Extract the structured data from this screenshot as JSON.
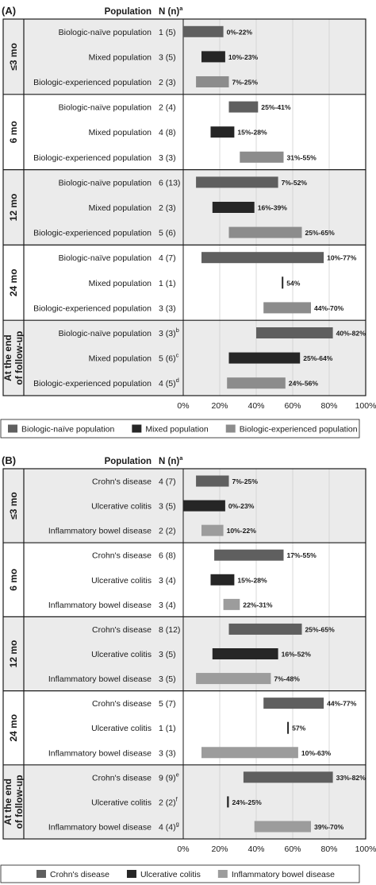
{
  "colors": {
    "naive": "#5f5f5f",
    "mixed": "#262626",
    "experienced": "#8c8c8c",
    "crohns": "#5f5f5f",
    "uc": "#262626",
    "ibd": "#9c9c9c",
    "shade": "#ebebeb"
  },
  "chart_data": [
    {
      "type": "bar",
      "panel": "(A)",
      "col_population": "Population",
      "col_n": "N (n)",
      "col_n_sup": "a",
      "xlim": [
        0,
        100
      ],
      "x_ticks": [
        "0%",
        "20%",
        "40%",
        "60%",
        "80%",
        "100%"
      ],
      "legend": [
        {
          "label": "Biologic-naïve population",
          "color_key": "naive"
        },
        {
          "label": "Mixed population",
          "color_key": "mixed"
        },
        {
          "label": "Biologic-experienced population",
          "color_key": "experienced"
        }
      ],
      "groups": [
        {
          "label": "≤3 mo",
          "shaded": true,
          "rows": [
            {
              "label": "Biologic-naïve population",
              "n": "1 (5)",
              "sup": "",
              "low": 0,
              "high": 22,
              "range_label": "0%-22%",
              "color_key": "naive"
            },
            {
              "label": "Mixed population",
              "n": "3 (5)",
              "sup": "",
              "low": 10,
              "high": 23,
              "range_label": "10%-23%",
              "color_key": "mixed"
            },
            {
              "label": "Biologic-experienced population",
              "n": "2 (3)",
              "sup": "",
              "low": 7,
              "high": 25,
              "range_label": "7%-25%",
              "color_key": "experienced"
            }
          ]
        },
        {
          "label": "6 mo",
          "shaded": false,
          "rows": [
            {
              "label": "Biologic-naïve population",
              "n": "2 (4)",
              "sup": "",
              "low": 25,
              "high": 41,
              "range_label": "25%-41%",
              "color_key": "naive"
            },
            {
              "label": "Mixed population",
              "n": "4 (8)",
              "sup": "",
              "low": 15,
              "high": 28,
              "range_label": "15%-28%",
              "color_key": "mixed"
            },
            {
              "label": "Biologic-experienced population",
              "n": "3 (3)",
              "sup": "",
              "low": 31,
              "high": 55,
              "range_label": "31%-55%",
              "color_key": "experienced"
            }
          ]
        },
        {
          "label": "12 mo",
          "shaded": true,
          "rows": [
            {
              "label": "Biologic-naïve population",
              "n": "6 (13)",
              "sup": "",
              "low": 7,
              "high": 52,
              "range_label": "7%-52%",
              "color_key": "naive"
            },
            {
              "label": "Mixed population",
              "n": "2 (3)",
              "sup": "",
              "low": 16,
              "high": 39,
              "range_label": "16%-39%",
              "color_key": "mixed"
            },
            {
              "label": "Biologic-experienced population",
              "n": "5 (6)",
              "sup": "",
              "low": 25,
              "high": 65,
              "range_label": "25%-65%",
              "color_key": "experienced"
            }
          ]
        },
        {
          "label": "24 mo",
          "shaded": false,
          "rows": [
            {
              "label": "Biologic-naïve population",
              "n": "4 (7)",
              "sup": "",
              "low": 10,
              "high": 77,
              "range_label": "10%-77%",
              "color_key": "naive"
            },
            {
              "label": "Mixed population",
              "n": "1 (1)",
              "sup": "",
              "low": 54,
              "high": 54,
              "range_label": "54%",
              "color_key": "mixed"
            },
            {
              "label": "Biologic-experienced population",
              "n": "3 (3)",
              "sup": "",
              "low": 44,
              "high": 70,
              "range_label": "44%-70%",
              "color_key": "experienced"
            }
          ]
        },
        {
          "label": "At the end of follow-up",
          "shaded": true,
          "rows": [
            {
              "label": "Biologic-naïve population",
              "n": "3 (3)",
              "sup": "b",
              "low": 40,
              "high": 82,
              "range_label": "40%-82%",
              "color_key": "naive"
            },
            {
              "label": "Mixed population",
              "n": "5 (6)",
              "sup": "c",
              "low": 25,
              "high": 64,
              "range_label": "25%-64%",
              "color_key": "mixed"
            },
            {
              "label": "Biologic-experienced population",
              "n": "4 (5)",
              "sup": "d",
              "low": 24,
              "high": 56,
              "range_label": "24%-56%",
              "color_key": "experienced"
            }
          ]
        }
      ]
    },
    {
      "type": "bar",
      "panel": "(B)",
      "col_population": "Population",
      "col_n": "N (n)",
      "col_n_sup": "a",
      "xlim": [
        0,
        100
      ],
      "x_ticks": [
        "0%",
        "20%",
        "40%",
        "60%",
        "80%",
        "100%"
      ],
      "legend": [
        {
          "label": "Crohn's disease",
          "color_key": "crohns"
        },
        {
          "label": "Ulcerative colitis",
          "color_key": "uc"
        },
        {
          "label": "Inflammatory bowel disease",
          "color_key": "ibd"
        }
      ],
      "groups": [
        {
          "label": "≤3 mo",
          "shaded": true,
          "rows": [
            {
              "label": "Crohn's disease",
              "n": "4 (7)",
              "sup": "",
              "low": 7,
              "high": 25,
              "range_label": "7%-25%",
              "color_key": "crohns"
            },
            {
              "label": "Ulcerative colitis",
              "n": "3 (5)",
              "sup": "",
              "low": 0,
              "high": 23,
              "range_label": "0%-23%",
              "color_key": "uc"
            },
            {
              "label": "Inflammatory bowel disease",
              "n": "2 (2)",
              "sup": "",
              "low": 10,
              "high": 22,
              "range_label": "10%-22%",
              "color_key": "ibd"
            }
          ]
        },
        {
          "label": "6 mo",
          "shaded": false,
          "rows": [
            {
              "label": "Crohn's disease",
              "n": "6 (8)",
              "sup": "",
              "low": 17,
              "high": 55,
              "range_label": "17%-55%",
              "color_key": "crohns"
            },
            {
              "label": "Ulcerative colitis",
              "n": "3 (4)",
              "sup": "",
              "low": 15,
              "high": 28,
              "range_label": "15%-28%",
              "color_key": "uc"
            },
            {
              "label": "Inflammatory bowel disease",
              "n": "3 (4)",
              "sup": "",
              "low": 22,
              "high": 31,
              "range_label": "22%-31%",
              "color_key": "ibd"
            }
          ]
        },
        {
          "label": "12 mo",
          "shaded": true,
          "rows": [
            {
              "label": "Crohn's disease",
              "n": "8 (12)",
              "sup": "",
              "low": 25,
              "high": 65,
              "range_label": "25%-65%",
              "color_key": "crohns"
            },
            {
              "label": "Ulcerative colitis",
              "n": "3 (5)",
              "sup": "",
              "low": 16,
              "high": 52,
              "range_label": "16%-52%",
              "color_key": "uc"
            },
            {
              "label": "Inflammatory bowel disease",
              "n": "3 (5)",
              "sup": "",
              "low": 7,
              "high": 48,
              "range_label": "7%-48%",
              "color_key": "ibd"
            }
          ]
        },
        {
          "label": "24 mo",
          "shaded": false,
          "rows": [
            {
              "label": "Crohn's disease",
              "n": "5 (7)",
              "sup": "",
              "low": 44,
              "high": 77,
              "range_label": "44%-77%",
              "color_key": "crohns"
            },
            {
              "label": "Ulcerative colitis",
              "n": "1 (1)",
              "sup": "",
              "low": 57,
              "high": 57,
              "range_label": "57%",
              "color_key": "uc"
            },
            {
              "label": "Inflammatory bowel disease",
              "n": "3 (3)",
              "sup": "",
              "low": 10,
              "high": 63,
              "range_label": "10%-63%",
              "color_key": "ibd"
            }
          ]
        },
        {
          "label": "At the end of follow-up",
          "shaded": true,
          "rows": [
            {
              "label": "Crohn's disease",
              "n": "9 (9)",
              "sup": "e",
              "low": 33,
              "high": 82,
              "range_label": "33%-82%",
              "color_key": "crohns"
            },
            {
              "label": "Ulcerative colitis",
              "n": "2 (2)",
              "sup": "f",
              "low": 24,
              "high": 25,
              "range_label": "24%-25%",
              "color_key": "uc"
            },
            {
              "label": "Inflammatory bowel disease",
              "n": "4 (4)",
              "sup": "g",
              "low": 39,
              "high": 70,
              "range_label": "39%-70%",
              "color_key": "ibd"
            }
          ]
        }
      ]
    }
  ]
}
